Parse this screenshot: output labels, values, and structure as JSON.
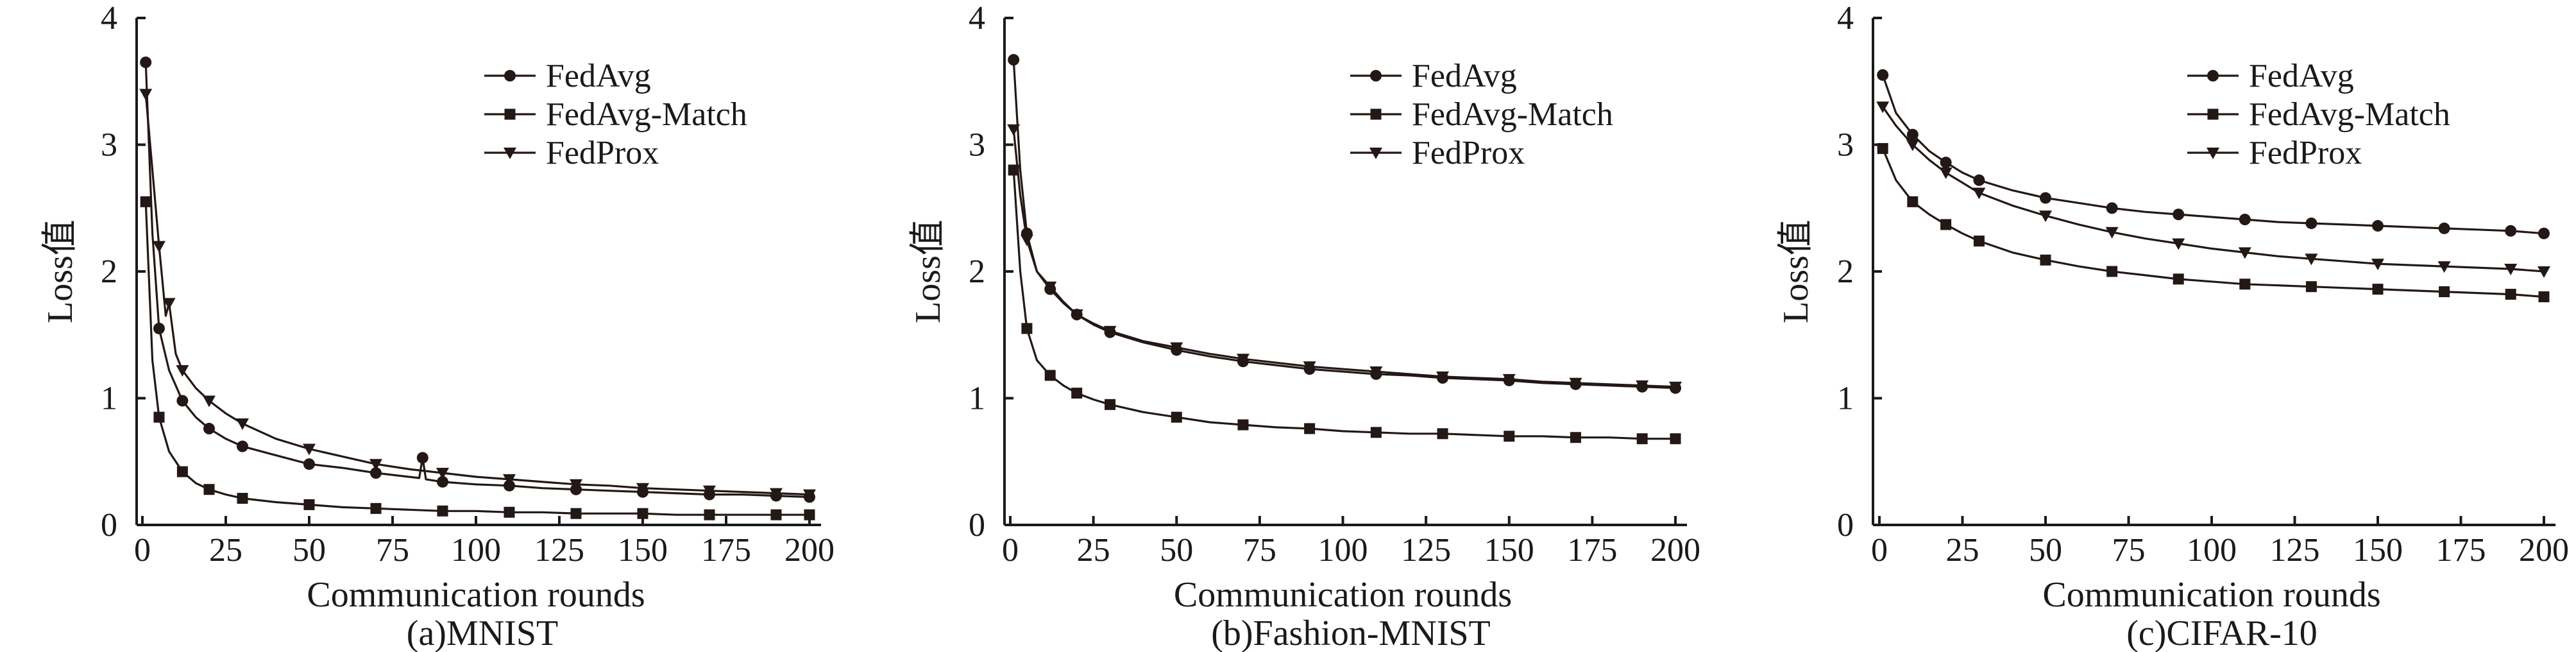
{
  "chart_data": [
    {
      "type": "line",
      "subtitle": "(a)MNIST",
      "xlabel": "Communication rounds",
      "ylabel": "Loss值",
      "xlim": [
        0,
        200
      ],
      "ylim": [
        0,
        4
      ],
      "xticks": [
        "0",
        "25",
        "50",
        "75",
        "100",
        "125",
        "150",
        "175",
        "200"
      ],
      "yticks": [
        "0",
        "1",
        "2",
        "3",
        "4"
      ],
      "legend_position": "top-right",
      "grid": false,
      "series": [
        {
          "name": "FedAvg",
          "marker": "circle",
          "x": [
            1,
            3,
            5,
            8,
            12,
            16,
            20,
            25,
            30,
            40,
            50,
            60,
            70,
            83,
            84,
            85,
            90,
            100,
            110,
            120,
            130,
            140,
            150,
            160,
            170,
            180,
            190,
            200
          ],
          "y": [
            3.65,
            2.3,
            1.55,
            1.22,
            0.98,
            0.85,
            0.76,
            0.68,
            0.62,
            0.55,
            0.48,
            0.45,
            0.41,
            0.37,
            0.53,
            0.36,
            0.34,
            0.32,
            0.31,
            0.29,
            0.28,
            0.27,
            0.26,
            0.25,
            0.24,
            0.24,
            0.23,
            0.22
          ]
        },
        {
          "name": "FedAvg-Match",
          "marker": "square",
          "x": [
            1,
            3,
            5,
            8,
            12,
            16,
            20,
            25,
            30,
            40,
            50,
            60,
            70,
            80,
            90,
            100,
            110,
            120,
            130,
            140,
            150,
            160,
            170,
            180,
            190,
            200
          ],
          "y": [
            2.55,
            1.3,
            0.85,
            0.58,
            0.42,
            0.33,
            0.28,
            0.24,
            0.21,
            0.18,
            0.16,
            0.14,
            0.13,
            0.12,
            0.11,
            0.11,
            0.1,
            0.1,
            0.09,
            0.09,
            0.09,
            0.08,
            0.08,
            0.08,
            0.08,
            0.08
          ]
        },
        {
          "name": "FedProx",
          "marker": "triangle-down",
          "x": [
            1,
            3,
            5,
            7,
            8,
            10,
            12,
            16,
            20,
            25,
            30,
            40,
            50,
            60,
            70,
            80,
            90,
            100,
            110,
            120,
            130,
            140,
            150,
            160,
            170,
            180,
            190,
            200
          ],
          "y": [
            3.4,
            2.8,
            2.2,
            1.65,
            1.75,
            1.35,
            1.22,
            1.08,
            0.98,
            0.88,
            0.8,
            0.68,
            0.6,
            0.54,
            0.48,
            0.44,
            0.41,
            0.38,
            0.36,
            0.34,
            0.32,
            0.31,
            0.29,
            0.28,
            0.27,
            0.26,
            0.25,
            0.24
          ]
        }
      ]
    },
    {
      "type": "line",
      "subtitle": "(b)Fashion-MNIST",
      "xlabel": "Communication rounds",
      "ylabel": "Loss值",
      "xlim": [
        0,
        200
      ],
      "ylim": [
        0,
        4
      ],
      "xticks": [
        "0",
        "25",
        "50",
        "75",
        "100",
        "125",
        "150",
        "175",
        "200"
      ],
      "yticks": [
        "0",
        "1",
        "2",
        "3",
        "4"
      ],
      "legend_position": "top-right",
      "grid": false,
      "series": [
        {
          "name": "FedAvg",
          "marker": "circle",
          "x": [
            1,
            3,
            5,
            8,
            12,
            16,
            20,
            25,
            30,
            40,
            50,
            60,
            70,
            80,
            90,
            100,
            110,
            120,
            130,
            140,
            150,
            160,
            170,
            180,
            190,
            200
          ],
          "y": [
            3.67,
            2.8,
            2.3,
            2.0,
            1.86,
            1.75,
            1.66,
            1.58,
            1.52,
            1.44,
            1.38,
            1.33,
            1.29,
            1.26,
            1.23,
            1.21,
            1.19,
            1.18,
            1.16,
            1.15,
            1.14,
            1.12,
            1.11,
            1.1,
            1.09,
            1.08
          ]
        },
        {
          "name": "FedAvg-Match",
          "marker": "square",
          "x": [
            1,
            3,
            5,
            8,
            12,
            16,
            20,
            25,
            30,
            40,
            50,
            60,
            70,
            80,
            90,
            100,
            110,
            120,
            130,
            140,
            150,
            160,
            170,
            180,
            190,
            200
          ],
          "y": [
            2.8,
            2.0,
            1.55,
            1.3,
            1.18,
            1.1,
            1.04,
            0.99,
            0.95,
            0.89,
            0.85,
            0.81,
            0.79,
            0.77,
            0.76,
            0.74,
            0.73,
            0.72,
            0.72,
            0.71,
            0.7,
            0.7,
            0.69,
            0.69,
            0.68,
            0.68
          ]
        },
        {
          "name": "FedProx",
          "marker": "triangle-down",
          "x": [
            1,
            3,
            5,
            8,
            12,
            16,
            20,
            25,
            30,
            40,
            50,
            60,
            70,
            80,
            90,
            100,
            110,
            120,
            130,
            140,
            150,
            160,
            170,
            180,
            190,
            200
          ],
          "y": [
            3.12,
            2.6,
            2.25,
            2.0,
            1.88,
            1.76,
            1.66,
            1.59,
            1.53,
            1.45,
            1.4,
            1.35,
            1.31,
            1.28,
            1.25,
            1.23,
            1.21,
            1.19,
            1.17,
            1.16,
            1.15,
            1.13,
            1.12,
            1.11,
            1.1,
            1.09
          ]
        }
      ]
    },
    {
      "type": "line",
      "subtitle": "(c)CIFAR-10",
      "xlabel": "Communication rounds",
      "ylabel": "Loss值",
      "xlim": [
        0,
        200
      ],
      "ylim": [
        0,
        4
      ],
      "xticks": [
        "0",
        "25",
        "50",
        "75",
        "100",
        "125",
        "150",
        "175",
        "200"
      ],
      "yticks": [
        "0",
        "1",
        "2",
        "3",
        "4"
      ],
      "legend_position": "top-right",
      "grid": false,
      "series": [
        {
          "name": "FedAvg",
          "marker": "circle",
          "x": [
            1,
            5,
            10,
            15,
            20,
            25,
            30,
            40,
            50,
            60,
            70,
            80,
            90,
            100,
            110,
            120,
            130,
            140,
            150,
            160,
            170,
            180,
            190,
            200
          ],
          "y": [
            3.55,
            3.25,
            3.08,
            2.95,
            2.86,
            2.78,
            2.72,
            2.64,
            2.58,
            2.54,
            2.5,
            2.47,
            2.45,
            2.43,
            2.41,
            2.39,
            2.38,
            2.37,
            2.36,
            2.35,
            2.34,
            2.33,
            2.32,
            2.3
          ]
        },
        {
          "name": "FedAvg-Match",
          "marker": "square",
          "x": [
            1,
            5,
            10,
            15,
            20,
            25,
            30,
            40,
            50,
            60,
            70,
            80,
            90,
            100,
            110,
            120,
            130,
            140,
            150,
            160,
            170,
            180,
            190,
            200
          ],
          "y": [
            2.97,
            2.72,
            2.55,
            2.45,
            2.37,
            2.3,
            2.24,
            2.15,
            2.09,
            2.04,
            2.0,
            1.97,
            1.94,
            1.92,
            1.9,
            1.89,
            1.88,
            1.87,
            1.86,
            1.85,
            1.84,
            1.83,
            1.82,
            1.8
          ]
        },
        {
          "name": "FedProx",
          "marker": "triangle-down",
          "x": [
            1,
            5,
            10,
            15,
            20,
            25,
            30,
            40,
            50,
            60,
            70,
            80,
            90,
            100,
            110,
            120,
            130,
            140,
            150,
            160,
            170,
            180,
            190,
            200
          ],
          "y": [
            3.3,
            3.15,
            3.0,
            2.88,
            2.78,
            2.7,
            2.62,
            2.52,
            2.44,
            2.37,
            2.31,
            2.26,
            2.22,
            2.18,
            2.15,
            2.12,
            2.1,
            2.08,
            2.06,
            2.05,
            2.04,
            2.03,
            2.02,
            2.0
          ]
        }
      ]
    }
  ]
}
